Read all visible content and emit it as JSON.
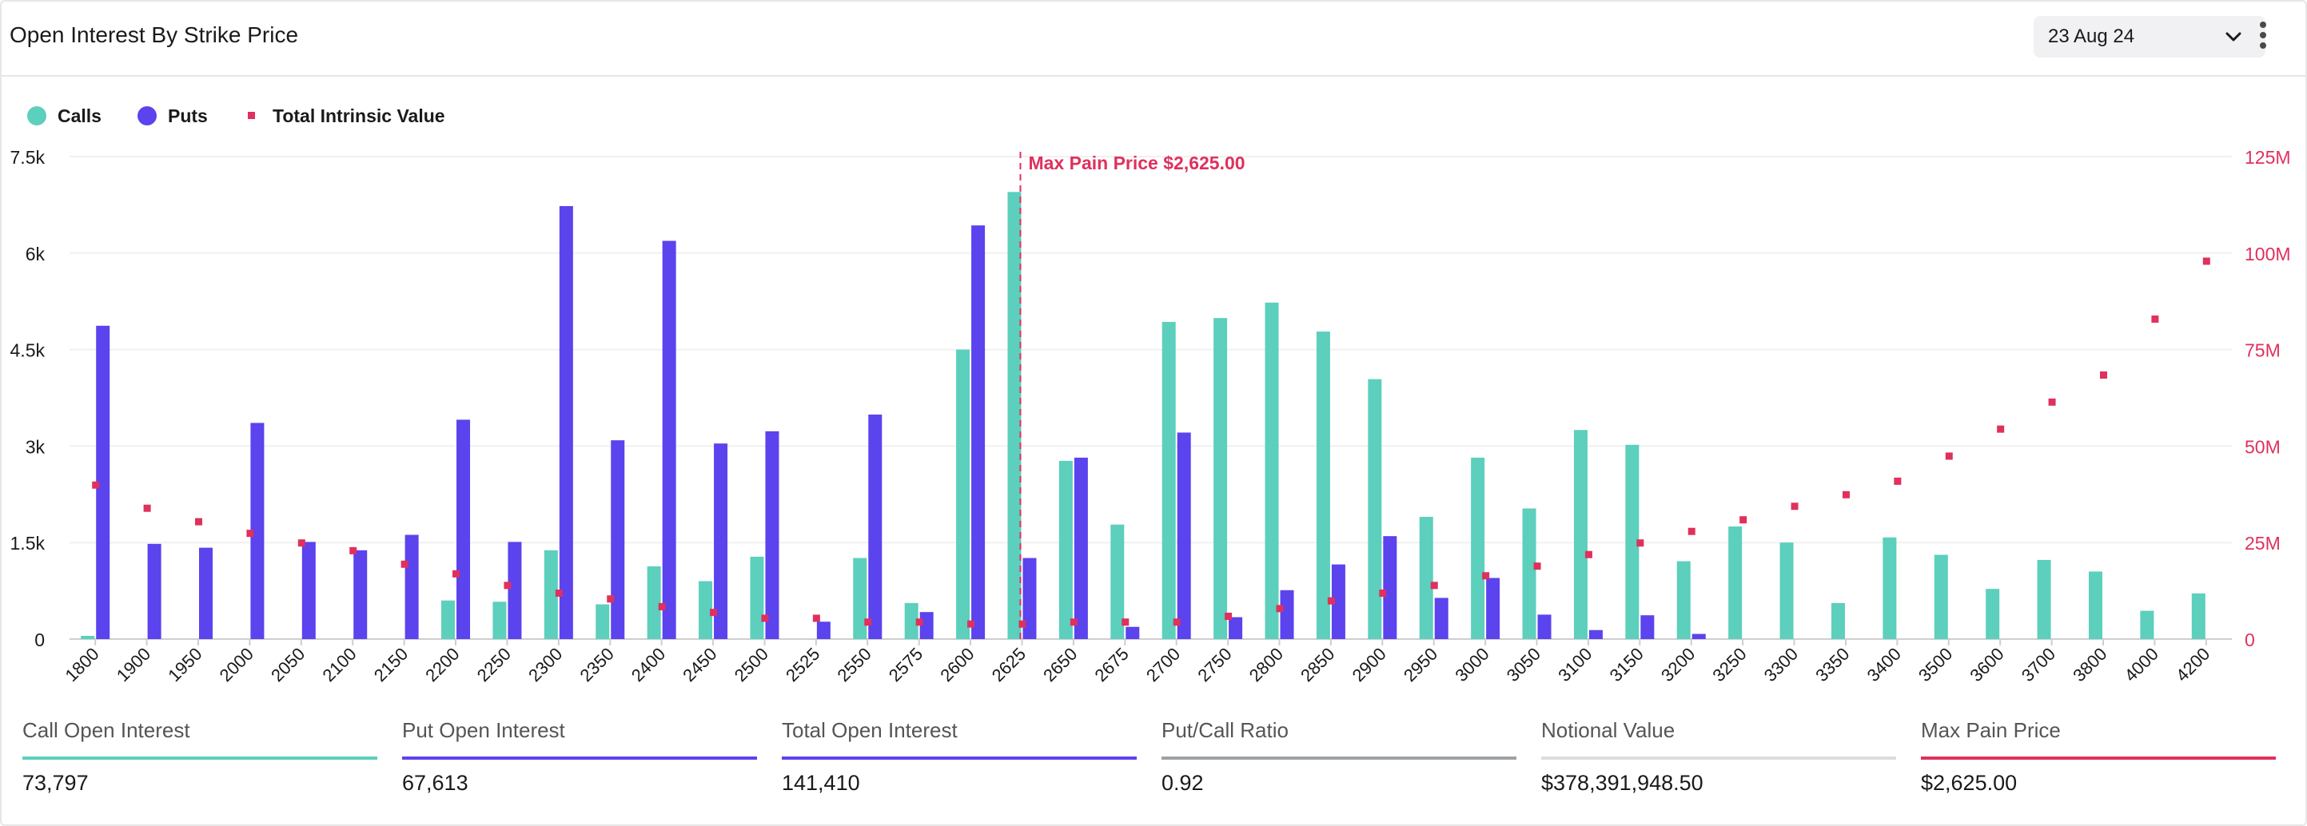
{
  "header": {
    "title": "Open Interest By Strike Price",
    "date_selected": "23 Aug 24"
  },
  "legend": {
    "calls": "Calls",
    "puts": "Puts",
    "tiv": "Total Intrinsic Value"
  },
  "colors": {
    "calls": "#5ccfbd",
    "puts": "#5b43ee",
    "tiv": "#e0305c",
    "ratio": "#9ea2a6",
    "notional": "#dcdcdc",
    "maxpain": "#e0305c"
  },
  "chart_data": {
    "type": "bar",
    "categories": [
      "1800",
      "1900",
      "1950",
      "2000",
      "2050",
      "2100",
      "2150",
      "2200",
      "2250",
      "2300",
      "2350",
      "2400",
      "2450",
      "2500",
      "2525",
      "2550",
      "2575",
      "2600",
      "2625",
      "2650",
      "2675",
      "2700",
      "2750",
      "2800",
      "2850",
      "2900",
      "2950",
      "3000",
      "3050",
      "3100",
      "3150",
      "3200",
      "3250",
      "3300",
      "3350",
      "3400",
      "3500",
      "3600",
      "3700",
      "3800",
      "4000",
      "4200"
    ],
    "series": [
      {
        "name": "Calls",
        "axis": "left",
        "type": "bar",
        "values": [
          50,
          0,
          0,
          0,
          0,
          0,
          0,
          600,
          580,
          1380,
          540,
          1130,
          900,
          1280,
          0,
          1260,
          560,
          4500,
          6950,
          2770,
          1780,
          4930,
          4990,
          5230,
          4780,
          4040,
          1900,
          2820,
          2030,
          3250,
          3020,
          1210,
          1750,
          1500,
          560,
          1580,
          1310,
          780,
          1230,
          1050,
          440,
          710
        ]
      },
      {
        "name": "Puts",
        "axis": "left",
        "type": "bar",
        "values": [
          4870,
          1480,
          1420,
          3360,
          1510,
          1380,
          1620,
          3410,
          1510,
          6730,
          3090,
          6190,
          3040,
          3230,
          270,
          3490,
          420,
          6430,
          1260,
          2820,
          190,
          3210,
          340,
          760,
          1160,
          1600,
          640,
          950,
          380,
          140,
          370,
          80,
          0,
          0,
          0,
          0,
          0,
          0,
          0,
          0,
          0,
          0
        ]
      },
      {
        "name": "Total Intrinsic Value",
        "axis": "right",
        "type": "scatter",
        "values": [
          40,
          34,
          30.5,
          27.5,
          25,
          23,
          19.5,
          17,
          14,
          12,
          10.5,
          8.5,
          7,
          5.5,
          5.5,
          4.5,
          4.5,
          4,
          4,
          4.5,
          4.5,
          4.5,
          6,
          8,
          10,
          12,
          14,
          16.5,
          19,
          22,
          25,
          28,
          31,
          34.5,
          37.5,
          41,
          47.5,
          54.5,
          61.5,
          68.5,
          83,
          98
        ]
      }
    ],
    "y_left": {
      "ticks": [
        "0",
        "1.5k",
        "3k",
        "4.5k",
        "6k",
        "7.5k"
      ],
      "range": [
        0,
        7500
      ]
    },
    "y_right": {
      "ticks": [
        "0",
        "25M",
        "50M",
        "75M",
        "100M",
        "125M"
      ],
      "range": [
        0,
        125
      ],
      "unit": "M"
    },
    "annotation": {
      "label": "Max Pain Price $2,625.00",
      "category": "2625"
    }
  },
  "stats": [
    {
      "label": "Call Open Interest",
      "value": "73,797",
      "color": "#5ccfbd"
    },
    {
      "label": "Put Open Interest",
      "value": "67,613",
      "color": "#5b43ee"
    },
    {
      "label": "Total Open Interest",
      "value": "141,410",
      "color": "#5b43ee"
    },
    {
      "label": "Put/Call Ratio",
      "value": "0.92",
      "color": "#9ea2a6"
    },
    {
      "label": "Notional Value",
      "value": "$378,391,948.50",
      "color": "#dcdcdc"
    },
    {
      "label": "Max Pain Price",
      "value": "$2,625.00",
      "color": "#e0305c"
    }
  ]
}
